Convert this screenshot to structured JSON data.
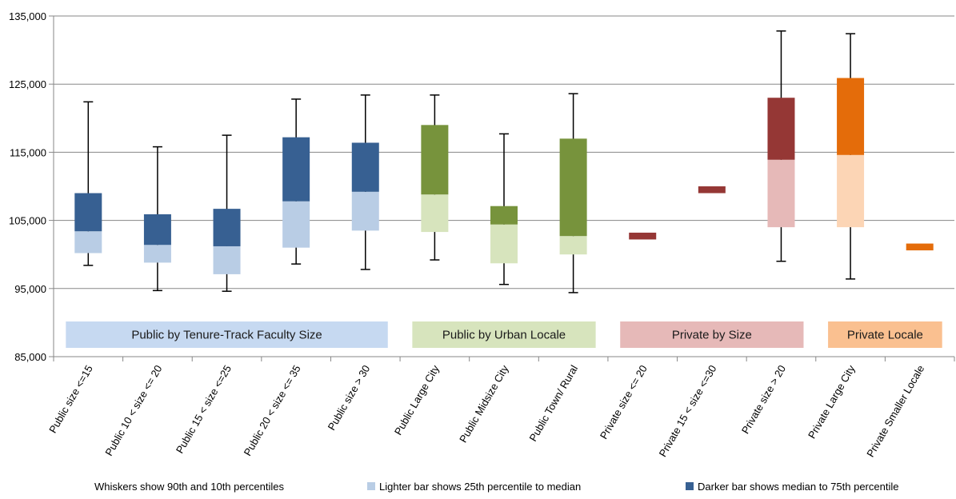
{
  "chart_data": {
    "type": "box",
    "title": "",
    "xlabel": "",
    "ylabel": "",
    "ylim": [
      85000,
      135000
    ],
    "y_ticks": [
      85000,
      95000,
      105000,
      115000,
      125000,
      135000
    ],
    "y_tick_labels": [
      "85,000",
      "95,000",
      "105,000",
      "115,000",
      "125,000",
      "135,000"
    ],
    "grid": "horizontal",
    "categories": [
      "Public size <=15",
      "Public 10 < size <= 20",
      "Public 15 < size <=25",
      "Public 20 < size <= 35",
      "Public size > 30",
      "Public Large City",
      "Public Midsize City",
      "Public Town/ Rural",
      "Private size <= 20",
      "Private 15 < size <=30",
      "Private size > 20",
      "Private Large City",
      "Private Smaller Locale"
    ],
    "series": [
      {
        "category": "Public size <=15",
        "p10": 98400,
        "p25": 100200,
        "median": 103400,
        "p75": 109000,
        "p90": 122400,
        "light_color": "#b9cde5",
        "dark_color": "#376092"
      },
      {
        "category": "Public 10 < size <= 20",
        "p10": 94700,
        "p25": 98800,
        "median": 101400,
        "p75": 105900,
        "p90": 115800,
        "light_color": "#b9cde5",
        "dark_color": "#376092"
      },
      {
        "category": "Public 15 < size <=25",
        "p10": 94600,
        "p25": 97100,
        "median": 101200,
        "p75": 106700,
        "p90": 117500,
        "light_color": "#b9cde5",
        "dark_color": "#376092"
      },
      {
        "category": "Public 20 < size <= 35",
        "p10": 98600,
        "p25": 101000,
        "median": 107800,
        "p75": 117200,
        "p90": 122800,
        "light_color": "#b9cde5",
        "dark_color": "#376092"
      },
      {
        "category": "Public size > 30",
        "p10": 97800,
        "p25": 103500,
        "median": 109200,
        "p75": 116400,
        "p90": 123400,
        "light_color": "#b9cde5",
        "dark_color": "#376092"
      },
      {
        "category": "Public Large City",
        "p10": 99200,
        "p25": 103300,
        "median": 108800,
        "p75": 119000,
        "p90": 123400,
        "light_color": "#d7e4bd",
        "dark_color": "#77933c"
      },
      {
        "category": "Public Midsize City",
        "p10": 95600,
        "p25": 98700,
        "median": 104400,
        "p75": 107100,
        "p90": 117700,
        "light_color": "#d7e4bd",
        "dark_color": "#77933c"
      },
      {
        "category": "Public Town/ Rural",
        "p10": 94400,
        "p25": 100000,
        "median": 102700,
        "p75": 117000,
        "p90": 123600,
        "light_color": "#d7e4bd",
        "dark_color": "#77933c"
      },
      {
        "category": "Private size <= 20",
        "p10": null,
        "p25": null,
        "median": 102200,
        "p75": 103200,
        "p90": null,
        "light_color": "#e6b9b8",
        "dark_color": "#953735"
      },
      {
        "category": "Private 15 < size <=30",
        "p10": null,
        "p25": null,
        "median": 109000,
        "p75": 110000,
        "p90": null,
        "light_color": "#e6b9b8",
        "dark_color": "#953735"
      },
      {
        "category": "Private size > 20",
        "p10": 99000,
        "p25": 104000,
        "median": 113900,
        "p75": 123000,
        "p90": 132800,
        "light_color": "#e6b9b8",
        "dark_color": "#953735"
      },
      {
        "category": "Private Large City",
        "p10": 96400,
        "p25": 104000,
        "median": 114600,
        "p75": 125900,
        "p90": 132400,
        "light_color": "#fcd5b5",
        "dark_color": "#e46c0a"
      },
      {
        "category": "Private Smaller Locale",
        "p10": null,
        "p25": null,
        "median": 100600,
        "p75": 101600,
        "p90": null,
        "light_color": "#fcd5b5",
        "dark_color": "#e46c0a"
      }
    ],
    "groups": [
      {
        "label": "Public by Tenure-Track Faculty Size",
        "color": "#c6d9f1",
        "from": 0,
        "to": 4
      },
      {
        "label": "Public by Urban Locale",
        "color": "#d7e4bd",
        "from": 5,
        "to": 7
      },
      {
        "label": "Private by Size",
        "color": "#e6b9b8",
        "from": 8,
        "to": 10
      },
      {
        "label": "Private Locale",
        "color": "#fac090",
        "from": 11,
        "to": 12
      }
    ],
    "legend": [
      {
        "label": "Whiskers show 90th and 10th percentiles",
        "marker": "none"
      },
      {
        "label": "Lighter bar shows 25th percentile to median",
        "marker": "#b9cde5"
      },
      {
        "label": "Darker bar shows median to 75th percentile",
        "marker": "#376092"
      }
    ],
    "legend_position": "bottom"
  }
}
